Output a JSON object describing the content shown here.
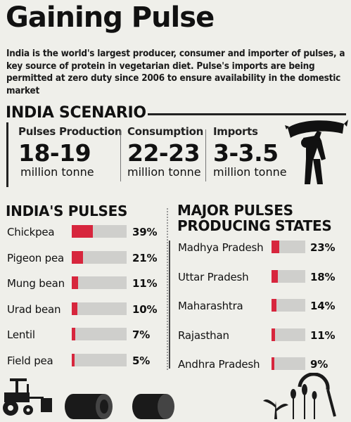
{
  "title": "Gaining Pulse",
  "intro": "India is the world's largest producer, consumer and importer of pulses, a key source of protein in vegetarian diet. Pulse's imports are being permitted at zero duty since 2006 to ensure availability in the domestic market",
  "scenario": {
    "heading": "INDIA SCENARIO",
    "stats": [
      {
        "label": "Pulses Production",
        "value": "18-19",
        "unit": "million tonne"
      },
      {
        "label": "Consumption",
        "value": "22-23",
        "unit": "million tonne"
      },
      {
        "label": "Imports",
        "value": "3-3.5",
        "unit": "million tonne"
      }
    ]
  },
  "chart_data": [
    {
      "type": "bar",
      "title": "INDIA'S PULSES",
      "categories": [
        "Chickpea",
        "Pigeon pea",
        "Mung bean",
        "Urad bean",
        "Lentil",
        "Field pea"
      ],
      "values": [
        39,
        21,
        11,
        10,
        7,
        5
      ],
      "value_labels": [
        "39%",
        "21%",
        "11%",
        "10%",
        "7%",
        "5%"
      ],
      "unit": "%",
      "colors": {
        "fill": "#d7263d",
        "track": "#cfcfcc"
      }
    },
    {
      "type": "bar",
      "title": "MAJOR PULSES PRODUCING STATES",
      "title_lines": [
        "MAJOR PULSES",
        "PRODUCING STATES"
      ],
      "categories": [
        "Madhya Pradesh",
        "Uttar Pradesh",
        "Maharashtra",
        "Rajasthan",
        "Andhra Pradesh"
      ],
      "values": [
        23,
        18,
        14,
        11,
        9
      ],
      "value_labels": [
        "23%",
        "18%",
        "14%",
        "11%",
        "9%"
      ],
      "unit": "%",
      "colors": {
        "fill": "#d7263d",
        "track": "#cfcfcc"
      }
    }
  ],
  "icons": [
    "porter-icon",
    "tractor-icon",
    "hay-bale-icon",
    "sprout-icon",
    "wheat-icon",
    "sickle-icon"
  ]
}
